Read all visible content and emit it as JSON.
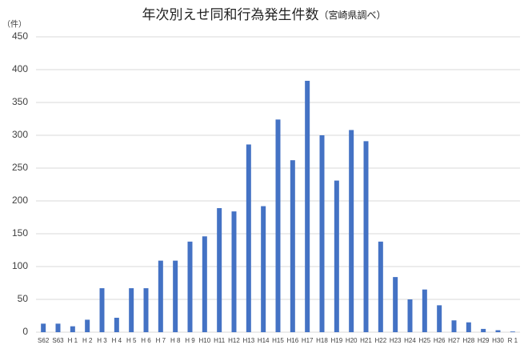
{
  "chart_data": {
    "type": "bar",
    "title": "年次別えせ同和行為発生件数",
    "subtitle": "（宮崎県調べ）",
    "y_label": "（件）",
    "categories": [
      "S62",
      "S63",
      "H 1",
      "H 2",
      "H 3",
      "H 4",
      "H 5",
      "H 6",
      "H 7",
      "H 8",
      "H 9",
      "H10",
      "H11",
      "H12",
      "H13",
      "H14",
      "H15",
      "H16",
      "H17",
      "H18",
      "H19",
      "H20",
      "H21",
      "H22",
      "H23",
      "H24",
      "H25",
      "H26",
      "H27",
      "H28",
      "H29",
      "H30",
      "R 1"
    ],
    "values": [
      13,
      13,
      9,
      19,
      67,
      22,
      67,
      67,
      109,
      109,
      138,
      146,
      189,
      184,
      286,
      192,
      324,
      262,
      383,
      300,
      231,
      308,
      291,
      138,
      84,
      50,
      65,
      41,
      18,
      15,
      5,
      3,
      1
    ],
    "color": "#4472c4",
    "ylim": [
      0,
      450
    ],
    "yticks": [
      0,
      50,
      100,
      150,
      200,
      250,
      300,
      350,
      400,
      450
    ],
    "grid": true
  }
}
